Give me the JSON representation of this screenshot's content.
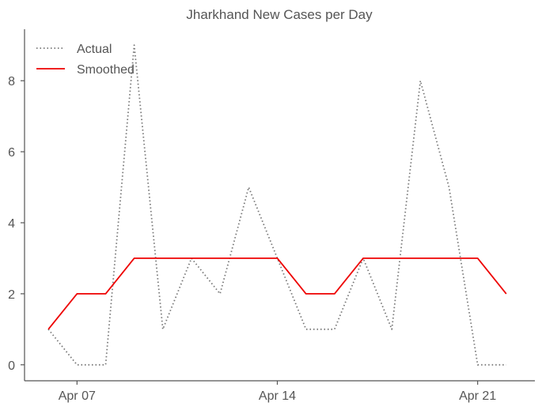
{
  "chart_data": {
    "type": "line",
    "title": "Jharkhand New Cases per Day",
    "xlabel": "",
    "ylabel": "",
    "x": [
      "2020-04-06",
      "2020-04-07",
      "2020-04-08",
      "2020-04-09",
      "2020-04-10",
      "2020-04-11",
      "2020-04-12",
      "2020-04-13",
      "2020-04-14",
      "2020-04-15",
      "2020-04-16",
      "2020-04-17",
      "2020-04-18",
      "2020-04-19",
      "2020-04-20",
      "2020-04-21",
      "2020-04-22"
    ],
    "x_ticks": [
      {
        "date": "2020-04-07",
        "label": "Apr 07"
      },
      {
        "date": "2020-04-14",
        "label": "Apr 14"
      },
      {
        "date": "2020-04-21",
        "label": "Apr 21"
      }
    ],
    "xlim": [
      "2020-04-05T04:00",
      "2020-04-23T00:00"
    ],
    "ylim": [
      -0.45,
      9.45
    ],
    "y_ticks": [
      0,
      2,
      4,
      6,
      8
    ],
    "grid": false,
    "legend_position": "top-left",
    "series": [
      {
        "name": "Actual",
        "style": "dotted",
        "color": "#777777",
        "values": [
          1,
          0,
          0,
          9,
          1,
          3,
          2,
          5,
          3,
          1,
          1,
          3,
          1,
          8,
          5,
          0,
          0
        ]
      },
      {
        "name": "Smoothed",
        "style": "solid",
        "color": "#ee0000",
        "values": [
          1,
          2,
          2,
          3,
          3,
          3,
          3,
          3,
          3,
          2,
          2,
          3,
          3,
          3,
          3,
          3,
          2
        ]
      }
    ]
  }
}
